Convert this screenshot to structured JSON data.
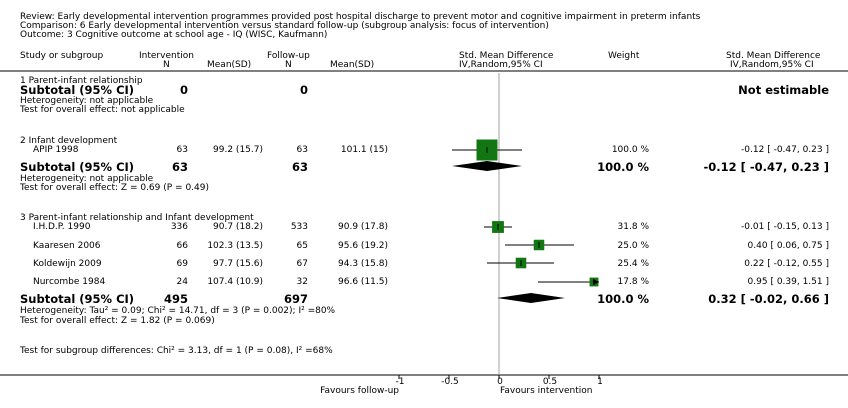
{
  "header": {
    "review": "Review:  Early developmental intervention programmes provided post hospital discharge to prevent motor and cognitive impairment in preterm infants",
    "comparison": "Comparison:  6 Early developmental intervention versus standard follow-up (subgroup analysis: focus of intervention)",
    "outcome": "Outcome:  3 Cognitive outcome at school age - IQ (WISC, Kaufmann)"
  },
  "columns": {
    "study": "Study or subgroup",
    "intervention": "Intervention",
    "followup": "Follow-up",
    "n": "N",
    "mean_sd": "Mean(SD)",
    "smd_plot": "Std. Mean Difference",
    "smd_plot_sub": "IV,Random,95% CI",
    "weight": "Weight",
    "smd_text": "Std. Mean Difference",
    "smd_text_sub": "IV,Random,95% CI"
  },
  "colors": {
    "square": "#127712",
    "diamond": "#000000",
    "zero_line": "#a0a0a0"
  },
  "chart_data": {
    "type": "forest",
    "xlim": [
      -1,
      1
    ],
    "ticks": [
      "-1",
      "-0.5",
      "0",
      "0.5",
      "1"
    ],
    "tick_values": [
      -1,
      -0.5,
      0,
      0.5,
      1
    ],
    "xlabel_left": "Favours follow-up",
    "xlabel_right": "Favours intervention",
    "groups": [
      {
        "title": "1 Parent-infant relationship",
        "studies": [],
        "subtotal": {
          "label": "Subtotal (95% CI)",
          "n_int": "0",
          "n_fu": "0",
          "result": "Not estimable",
          "weight": null,
          "est": null,
          "lo": null,
          "hi": null
        },
        "heterogeneity": "Heterogeneity: not applicable",
        "overall": "Test for overall effect: not applicable"
      },
      {
        "title": "2 Infant development",
        "studies": [
          {
            "name": "APIP 1998",
            "n_int": "63",
            "mean_int": "99.2 (15.7)",
            "n_fu": "63",
            "mean_fu": "101.1 (15)",
            "weight": "100.0 %",
            "w": 100.0,
            "ci": "-0.12 [ -0.47, 0.23 ]",
            "est": -0.12,
            "lo": -0.47,
            "hi": 0.23
          }
        ],
        "subtotal": {
          "label": "Subtotal (95% CI)",
          "n_int": "63",
          "n_fu": "63",
          "weight": "100.0 %",
          "result": "-0.12 [ -0.47, 0.23 ]",
          "est": -0.12,
          "lo": -0.47,
          "hi": 0.23
        },
        "heterogeneity": "Heterogeneity: not applicable",
        "overall": "Test for overall effect: Z = 0.69 (P = 0.49)"
      },
      {
        "title": "3 Parent-infant relationship and Infant development",
        "studies": [
          {
            "name": "I.H.D.P. 1990",
            "n_int": "336",
            "mean_int": "90.7 (18.2)",
            "n_fu": "533",
            "mean_fu": "90.9 (17.8)",
            "weight": "31.8 %",
            "w": 31.8,
            "ci": "-0.01 [ -0.15, 0.13 ]",
            "est": -0.01,
            "lo": -0.15,
            "hi": 0.13
          },
          {
            "name": "Kaaresen 2006",
            "n_int": "66",
            "mean_int": "102.3 (13.5)",
            "n_fu": "65",
            "mean_fu": "95.6 (19.2)",
            "weight": "25.0 %",
            "w": 25.0,
            "ci": "0.40 [ 0.06, 0.75 ]",
            "est": 0.4,
            "lo": 0.06,
            "hi": 0.75
          },
          {
            "name": "Koldewijn 2009",
            "n_int": "69",
            "mean_int": "97.7 (15.6)",
            "n_fu": "67",
            "mean_fu": "94.3 (15.8)",
            "weight": "25.4 %",
            "w": 25.4,
            "ci": "0.22 [ -0.12, 0.55 ]",
            "est": 0.22,
            "lo": -0.12,
            "hi": 0.55
          },
          {
            "name": "Nurcombe 1984",
            "n_int": "24",
            "mean_int": "107.4 (10.9)",
            "n_fu": "32",
            "mean_fu": "96.6 (11.5)",
            "weight": "17.8 %",
            "w": 17.8,
            "ci": "0.95 [ 0.39, 1.51 ]",
            "est": 0.95,
            "lo": 0.39,
            "hi": 1.51
          }
        ],
        "subtotal": {
          "label": "Subtotal (95% CI)",
          "n_int": "495",
          "n_fu": "697",
          "weight": "100.0 %",
          "result": "0.32 [ -0.02, 0.66 ]",
          "est": 0.32,
          "lo": -0.02,
          "hi": 0.66
        },
        "heterogeneity": "Heterogeneity: Tau² = 0.09; Chi² = 14.71, df = 3 (P = 0.002); I² =80%",
        "overall": "Test for overall effect: Z = 1.82 (P = 0.069)"
      }
    ],
    "subgroup_test": "Test for subgroup differences: Chi² = 3.13, df = 1 (P = 0.08), I² =68%"
  }
}
